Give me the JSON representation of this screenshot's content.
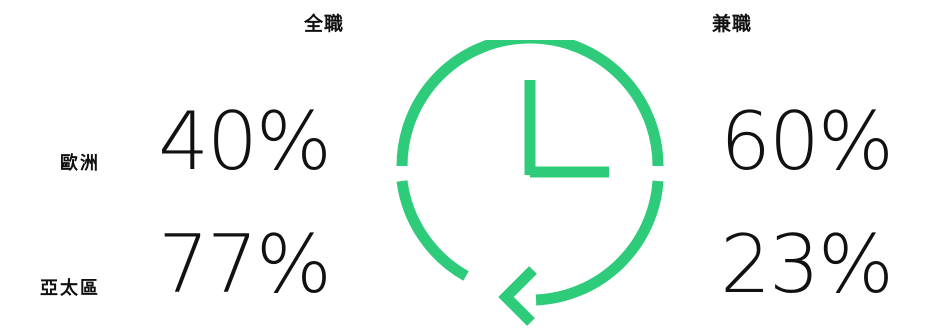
{
  "headers": {
    "full_time": "全職",
    "part_time": "兼職"
  },
  "rows": [
    {
      "region": "歐洲",
      "full_time": "40%",
      "part_time": "60%"
    },
    {
      "region": "亞太區",
      "full_time": "77%",
      "part_time": "23%"
    }
  ],
  "colors": {
    "accent": "#2ecc7a",
    "text": "#111111",
    "background": "#ffffff"
  },
  "icon": "clock-refresh-icon"
}
